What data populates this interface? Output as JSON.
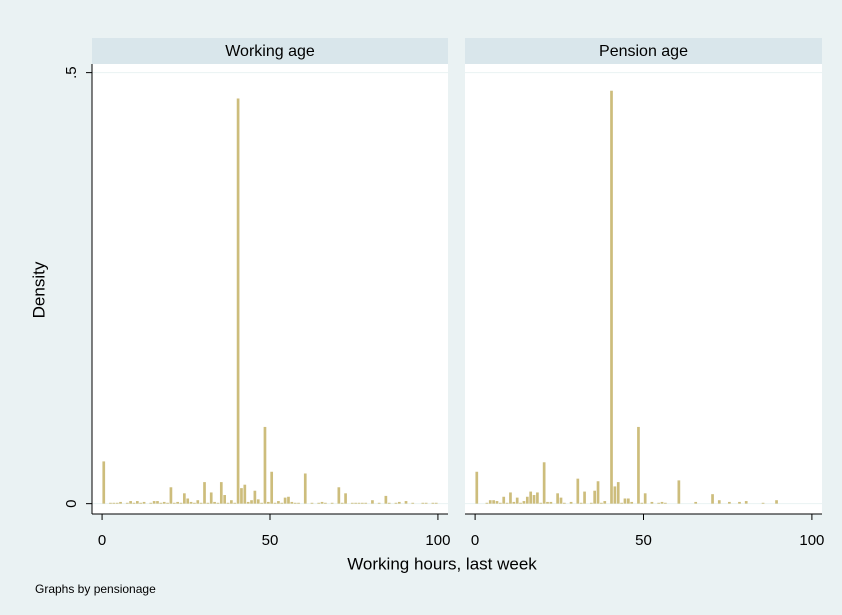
{
  "chart_data": [
    {
      "type": "histogram",
      "title": "Working age",
      "ylabel": "Density",
      "color": "#cdbd7c",
      "grid": true,
      "bins": [
        0,
        1,
        2,
        3,
        4,
        5,
        6,
        7,
        8,
        9,
        10,
        11,
        12,
        13,
        14,
        15,
        16,
        17,
        18,
        19,
        20,
        21,
        22,
        23,
        24,
        25,
        26,
        27,
        28,
        29,
        30,
        31,
        32,
        33,
        34,
        35,
        36,
        37,
        38,
        39,
        40,
        41,
        42,
        43,
        44,
        45,
        46,
        47,
        48,
        49,
        50,
        51,
        52,
        53,
        54,
        55,
        56,
        57,
        58,
        59,
        60,
        61,
        62,
        63,
        64,
        65,
        66,
        67,
        68,
        69,
        70,
        71,
        72,
        73,
        74,
        75,
        76,
        77,
        78,
        79,
        80,
        81,
        82,
        83,
        84,
        85,
        86,
        87,
        88,
        89,
        90,
        91,
        92,
        93,
        94,
        95,
        96,
        97,
        98,
        99,
        100
      ],
      "values": [
        0.049,
        0,
        0.001,
        0.001,
        0.001,
        0.002,
        0,
        0.001,
        0.003,
        0.001,
        0.003,
        0.001,
        0.002,
        0,
        0.001,
        0.003,
        0.003,
        0.001,
        0.002,
        0.001,
        0.019,
        0.001,
        0.002,
        0.001,
        0.012,
        0.006,
        0.002,
        0.001,
        0.004,
        0.001,
        0.025,
        0.001,
        0.013,
        0.002,
        0.001,
        0.025,
        0.01,
        0.001,
        0.004,
        0.001,
        0.47,
        0.018,
        0.022,
        0.002,
        0.004,
        0.015,
        0.005,
        0.001,
        0.089,
        0.002,
        0.037,
        0.001,
        0.003,
        0.001,
        0.007,
        0.008,
        0.002,
        0.001,
        0.001,
        0,
        0.035,
        0,
        0.001,
        0,
        0.001,
        0.002,
        0.001,
        0,
        0.001,
        0,
        0.019,
        0.001,
        0.012,
        0,
        0.001,
        0.001,
        0.001,
        0.001,
        0.001,
        0,
        0.004,
        0,
        0.001,
        0,
        0.009,
        0.001,
        0,
        0.001,
        0.002,
        0,
        0.003,
        0,
        0.001,
        0,
        0,
        0.001,
        0.001,
        0,
        0.001,
        0.001
      ],
      "xlim": [
        -3,
        103
      ],
      "xticks": [
        0,
        50,
        100
      ],
      "ylim": [
        -0.012,
        0.51
      ],
      "yticks": [
        0,
        {
          "value": 0.5,
          "label": ".5"
        }
      ]
    },
    {
      "type": "histogram",
      "title": "Pension age",
      "color": "#cdbd7c",
      "grid": true,
      "bins": [
        0,
        1,
        2,
        3,
        4,
        5,
        6,
        7,
        8,
        9,
        10,
        11,
        12,
        13,
        14,
        15,
        16,
        17,
        18,
        19,
        20,
        21,
        22,
        23,
        24,
        25,
        26,
        27,
        28,
        29,
        30,
        31,
        32,
        33,
        34,
        35,
        36,
        37,
        38,
        39,
        40,
        41,
        42,
        43,
        44,
        45,
        46,
        47,
        48,
        49,
        50,
        51,
        52,
        53,
        54,
        55,
        56,
        57,
        58,
        59,
        60,
        61,
        62,
        63,
        64,
        65,
        66,
        67,
        68,
        69,
        70,
        71,
        72,
        73,
        74,
        75,
        76,
        77,
        78,
        79,
        80,
        81,
        82,
        83,
        84,
        85,
        86,
        87,
        88,
        89,
        90,
        91,
        92,
        93,
        94,
        95,
        96,
        97,
        98,
        99,
        100
      ],
      "values": [
        0.037,
        0,
        0,
        0.001,
        0.004,
        0.004,
        0.003,
        0.001,
        0.008,
        0.001,
        0.013,
        0.002,
        0.007,
        0.001,
        0.003,
        0.008,
        0.014,
        0.01,
        0.013,
        0.001,
        0.048,
        0.002,
        0.002,
        0,
        0.012,
        0.007,
        0.001,
        0,
        0.002,
        0,
        0.029,
        0.001,
        0.014,
        0,
        0.001,
        0.015,
        0.026,
        0.001,
        0.003,
        0,
        0.479,
        0.02,
        0.025,
        0.001,
        0.006,
        0.006,
        0.002,
        0,
        0.089,
        0.001,
        0.012,
        0,
        0.002,
        0,
        0.001,
        0.002,
        0.001,
        0,
        0,
        0,
        0.027,
        0,
        0,
        0,
        0,
        0.002,
        0,
        0,
        0,
        0,
        0.011,
        0,
        0.004,
        0,
        0,
        0.002,
        0,
        0,
        0.002,
        0,
        0.003,
        0,
        0,
        0,
        0,
        0.001,
        0,
        0,
        0,
        0.004,
        0,
        0,
        0,
        0,
        0,
        0,
        0,
        0,
        0,
        0
      ],
      "xlim": [
        -3,
        103
      ],
      "xticks": [
        0,
        50,
        100
      ],
      "ylim": [
        -0.012,
        0.51
      ],
      "yticks": [
        0,
        {
          "value": 0.5,
          "label": ".5"
        }
      ]
    }
  ],
  "xlabel": "Working hours, last week",
  "note": "Graphs by pensionage"
}
